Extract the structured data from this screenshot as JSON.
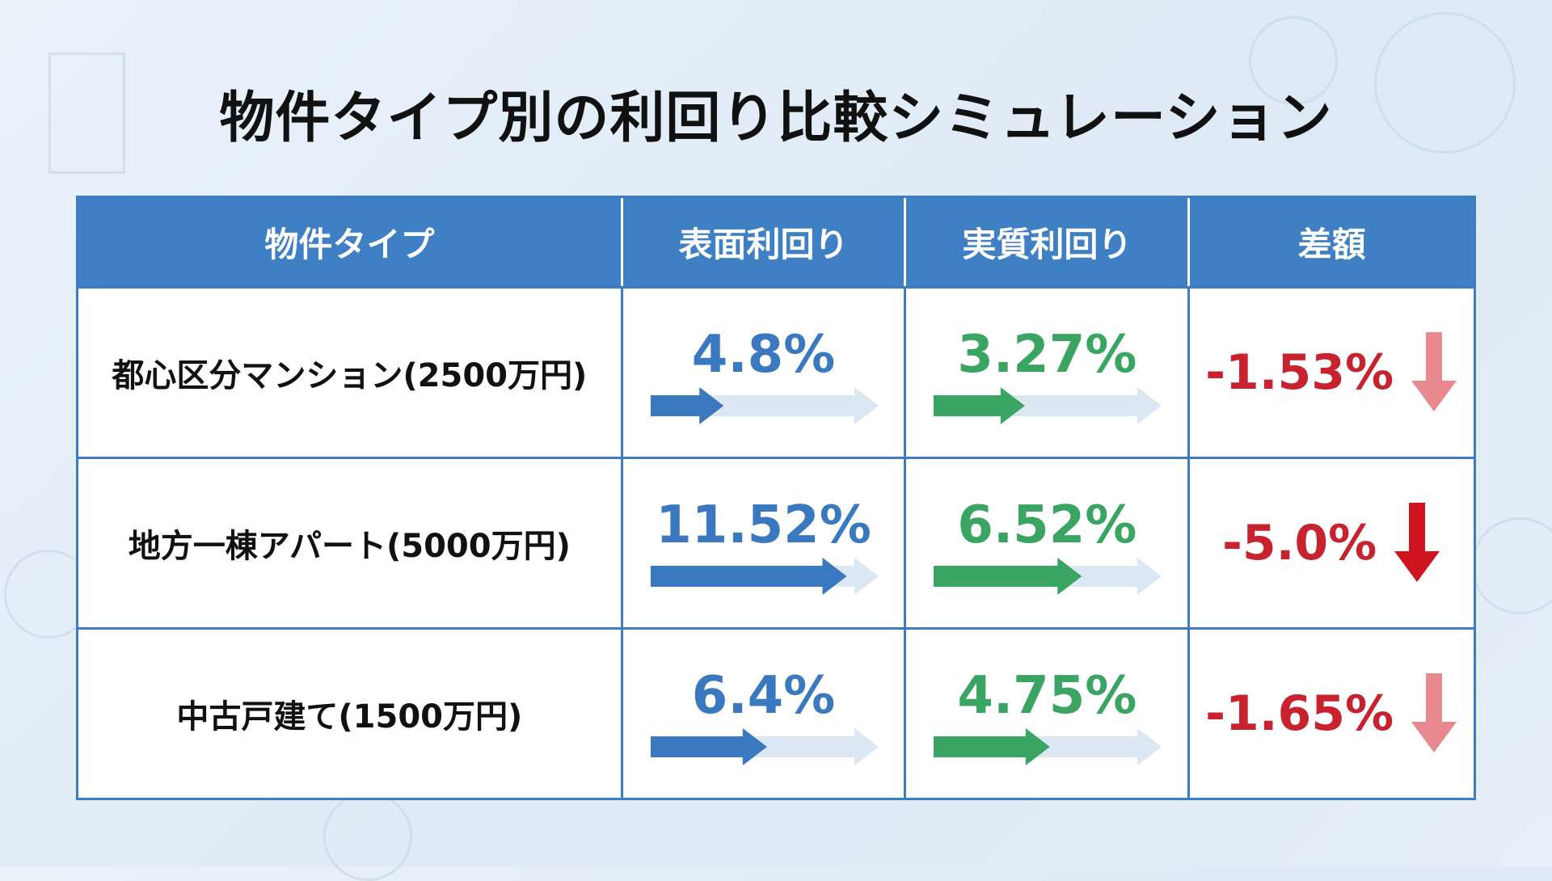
{
  "title": "物件タイプ別の利回り比較シミュレーション",
  "headers": [
    "物件タイプ",
    "表面利回り",
    "実質利回り",
    "差額"
  ],
  "colors": {
    "header": "#3f7fc4",
    "surface": "#3a78bf",
    "real": "#3aa463",
    "diff": "#c8222f",
    "track": "#dce7f4",
    "arrow_light": "#e8898f",
    "arrow_dark": "#d0141f"
  },
  "rows": [
    {
      "type": "都心区分マンション(2500万円)",
      "surface": "4.8%",
      "surface_fill": 0.32,
      "real": "3.27%",
      "real_fill": 0.4,
      "diff": "-1.53%",
      "arrow": "light"
    },
    {
      "type": "地方一棟アパート(5000万円)",
      "surface": "11.52%",
      "surface_fill": 0.86,
      "real": "6.52%",
      "real_fill": 0.65,
      "diff": "-5.0%",
      "arrow": "dark"
    },
    {
      "type": "中古戸建て(1500万円)",
      "surface": "6.4%",
      "surface_fill": 0.51,
      "real": "4.75%",
      "real_fill": 0.51,
      "diff": "-1.65%",
      "arrow": "light"
    }
  ]
}
